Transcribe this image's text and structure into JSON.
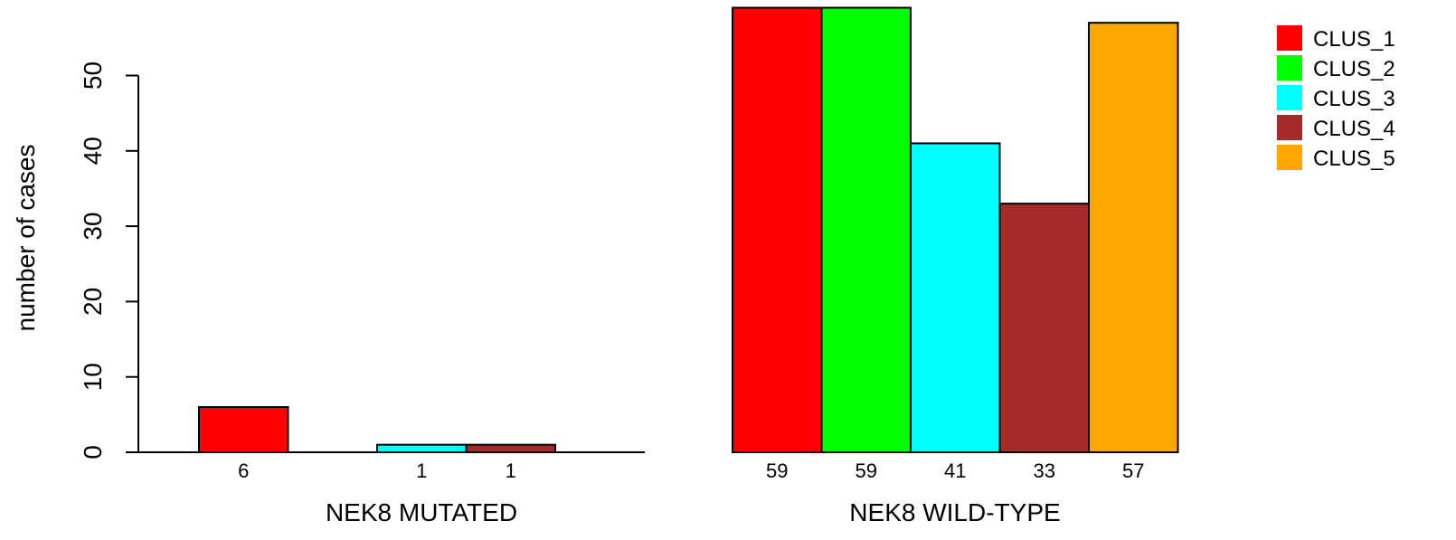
{
  "chart_data": {
    "type": "bar",
    "ylabel": "number of cases",
    "ylim": [
      0,
      59
    ],
    "yticks": [
      "0",
      "10",
      "20",
      "30",
      "40",
      "50"
    ],
    "legend": {
      "placement": "top-right",
      "entries": [
        {
          "label": "CLUS_1",
          "color": "#ff0000"
        },
        {
          "label": "CLUS_2",
          "color": "#00ff00"
        },
        {
          "label": "CLUS_3",
          "color": "#00ffff"
        },
        {
          "label": "CLUS_4",
          "color": "#a52a2a"
        },
        {
          "label": "CLUS_5",
          "color": "#ffa500"
        }
      ]
    },
    "groups": [
      {
        "name": "NEK8 MUTATED",
        "bars": [
          {
            "series": "CLUS_1",
            "value": 6,
            "label": "6"
          },
          {
            "series": "CLUS_2",
            "value": 0,
            "label": ""
          },
          {
            "series": "CLUS_3",
            "value": 1,
            "label": "1"
          },
          {
            "series": "CLUS_4",
            "value": 1,
            "label": "1"
          },
          {
            "series": "CLUS_5",
            "value": 0,
            "label": ""
          }
        ]
      },
      {
        "name": "NEK8 WILD-TYPE",
        "bars": [
          {
            "series": "CLUS_1",
            "value": 59,
            "label": "59"
          },
          {
            "series": "CLUS_2",
            "value": 59,
            "label": "59"
          },
          {
            "series": "CLUS_3",
            "value": 41,
            "label": "41"
          },
          {
            "series": "CLUS_4",
            "value": 33,
            "label": "33"
          },
          {
            "series": "CLUS_5",
            "value": 57,
            "label": "57"
          }
        ]
      }
    ]
  }
}
